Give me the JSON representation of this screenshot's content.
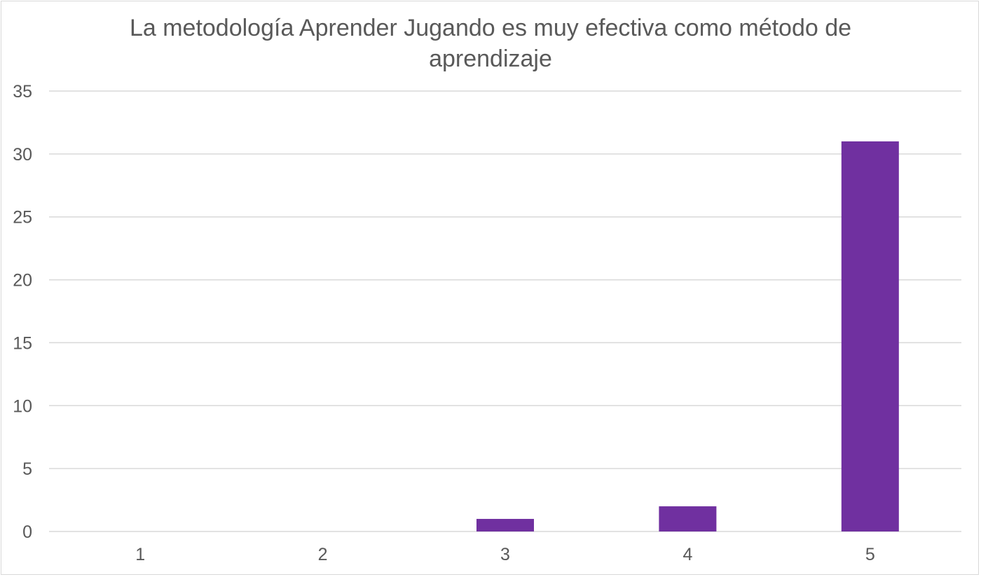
{
  "chart_data": {
    "type": "bar",
    "title": "La metodología Aprender Jugando es muy efectiva como método de aprendizaje",
    "categories": [
      "1",
      "2",
      "3",
      "4",
      "5"
    ],
    "series": [
      {
        "values": [
          0,
          0,
          1,
          2,
          31
        ]
      }
    ],
    "xlabel": "",
    "ylabel": "",
    "ylim": [
      0,
      35
    ],
    "yticks": [
      0,
      5,
      10,
      15,
      20,
      25,
      30,
      35
    ],
    "grid": true,
    "legend": "none",
    "colors": {
      "bar": "#7030a0",
      "grid": "#d9d9d9",
      "text": "#595959"
    }
  }
}
